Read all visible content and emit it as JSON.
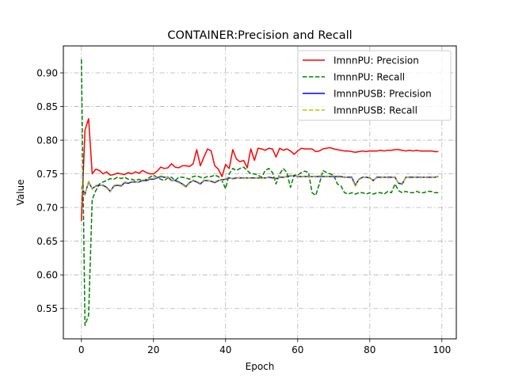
{
  "chart_data": {
    "type": "line",
    "title": "CONTAINER:Precision and Recall",
    "xlabel": "Epoch",
    "ylabel": "Value",
    "xlim": [
      -5,
      104
    ],
    "ylim": [
      0.505,
      0.94
    ],
    "xticks": [
      0,
      20,
      40,
      60,
      80,
      100
    ],
    "yticks": [
      0.55,
      0.6,
      0.65,
      0.7,
      0.75,
      0.8,
      0.85,
      0.9
    ],
    "ytick_labels": [
      "0.55",
      "0.60",
      "0.65",
      "0.70",
      "0.75",
      "0.80",
      "0.85",
      "0.90"
    ],
    "grid": true,
    "legend_position": "top-right",
    "series": [
      {
        "name": "ImnnPU: Precision",
        "color": "#ff0000",
        "dash": "solid",
        "x": [
          0,
          1,
          2,
          3,
          4,
          5,
          6,
          7,
          8,
          9,
          10,
          11,
          12,
          13,
          14,
          15,
          16,
          17,
          18,
          19,
          20,
          21,
          22,
          23,
          24,
          25,
          26,
          27,
          28,
          29,
          30,
          31,
          32,
          33,
          34,
          35,
          36,
          37,
          38,
          39,
          40,
          41,
          42,
          43,
          44,
          45,
          46,
          47,
          48,
          49,
          50,
          51,
          52,
          53,
          54,
          55,
          56,
          57,
          58,
          59,
          60,
          61,
          62,
          63,
          64,
          65,
          66,
          67,
          68,
          69,
          70,
          71,
          72,
          73,
          74,
          75,
          76,
          77,
          78,
          79,
          80,
          81,
          82,
          83,
          84,
          85,
          86,
          87,
          88,
          89,
          90,
          91,
          92,
          93,
          94,
          95,
          96,
          97,
          98,
          99
        ],
        "values": [
          0.68,
          0.815,
          0.832,
          0.75,
          0.757,
          0.755,
          0.75,
          0.753,
          0.748,
          0.749,
          0.751,
          0.75,
          0.749,
          0.752,
          0.75,
          0.753,
          0.751,
          0.755,
          0.752,
          0.75,
          0.75,
          0.754,
          0.76,
          0.758,
          0.759,
          0.765,
          0.76,
          0.759,
          0.762,
          0.762,
          0.761,
          0.765,
          0.786,
          0.762,
          0.775,
          0.787,
          0.784,
          0.762,
          0.757,
          0.746,
          0.764,
          0.758,
          0.786,
          0.772,
          0.768,
          0.77,
          0.759,
          0.787,
          0.77,
          0.788,
          0.787,
          0.785,
          0.788,
          0.787,
          0.775,
          0.788,
          0.785,
          0.787,
          0.784,
          0.779,
          0.784,
          0.788,
          0.787,
          0.787,
          0.787,
          0.783,
          0.784,
          0.787,
          0.788,
          0.789,
          0.787,
          0.786,
          0.785,
          0.784,
          0.784,
          0.783,
          0.782,
          0.783,
          0.784,
          0.783,
          0.784,
          0.784,
          0.784,
          0.785,
          0.784,
          0.785,
          0.785,
          0.786,
          0.786,
          0.785,
          0.784,
          0.785,
          0.784,
          0.785,
          0.784,
          0.784,
          0.784,
          0.784,
          0.783,
          0.783
        ]
      },
      {
        "name": "ImnnPU: Recall",
        "color": "#008000",
        "dash": "dashed",
        "x": [
          0,
          1,
          2,
          3,
          4,
          5,
          6,
          7,
          8,
          9,
          10,
          11,
          12,
          13,
          14,
          15,
          16,
          17,
          18,
          19,
          20,
          21,
          22,
          23,
          24,
          25,
          26,
          27,
          28,
          29,
          30,
          31,
          32,
          33,
          34,
          35,
          36,
          37,
          38,
          39,
          40,
          41,
          42,
          43,
          44,
          45,
          46,
          47,
          48,
          49,
          50,
          51,
          52,
          53,
          54,
          55,
          56,
          57,
          58,
          59,
          60,
          61,
          62,
          63,
          64,
          65,
          66,
          67,
          68,
          69,
          70,
          71,
          72,
          73,
          74,
          75,
          76,
          77,
          78,
          79,
          80,
          81,
          82,
          83,
          84,
          85,
          86,
          87,
          88,
          89,
          90,
          91,
          92,
          93,
          94,
          95,
          96,
          97,
          98,
          99
        ],
        "values": [
          0.92,
          0.525,
          0.54,
          0.712,
          0.725,
          0.735,
          0.738,
          0.74,
          0.743,
          0.742,
          0.745,
          0.743,
          0.745,
          0.742,
          0.742,
          0.74,
          0.742,
          0.74,
          0.742,
          0.745,
          0.748,
          0.745,
          0.742,
          0.74,
          0.744,
          0.745,
          0.74,
          0.745,
          0.745,
          0.744,
          0.742,
          0.746,
          0.747,
          0.745,
          0.744,
          0.746,
          0.746,
          0.748,
          0.746,
          0.74,
          0.728,
          0.75,
          0.758,
          0.755,
          0.758,
          0.76,
          0.755,
          0.75,
          0.75,
          0.748,
          0.745,
          0.755,
          0.758,
          0.752,
          0.735,
          0.75,
          0.758,
          0.752,
          0.73,
          0.748,
          0.748,
          0.752,
          0.754,
          0.752,
          0.722,
          0.718,
          0.735,
          0.755,
          0.752,
          0.75,
          0.748,
          0.735,
          0.732,
          0.722,
          0.72,
          0.722,
          0.72,
          0.722,
          0.722,
          0.72,
          0.722,
          0.72,
          0.722,
          0.722,
          0.72,
          0.724,
          0.722,
          0.735,
          0.725,
          0.722,
          0.724,
          0.722,
          0.722,
          0.724,
          0.722,
          0.722,
          0.724,
          0.724,
          0.722,
          0.722
        ]
      },
      {
        "name": "ImnnPUSB: Precision",
        "color": "#0000ff",
        "dash": "solid",
        "x": [
          0,
          1,
          2,
          3,
          4,
          5,
          6,
          7,
          8,
          9,
          10,
          11,
          12,
          13,
          14,
          15,
          16,
          17,
          18,
          19,
          20,
          21,
          22,
          23,
          24,
          25,
          26,
          27,
          28,
          29,
          30,
          31,
          32,
          33,
          34,
          35,
          36,
          37,
          38,
          39,
          40,
          41,
          42,
          43,
          44,
          45,
          46,
          47,
          48,
          49,
          50,
          51,
          52,
          53,
          54,
          55,
          56,
          57,
          58,
          59,
          60,
          61,
          62,
          63,
          64,
          65,
          66,
          67,
          68,
          69,
          70,
          71,
          72,
          73,
          74,
          75,
          76,
          77,
          78,
          79,
          80,
          81,
          82,
          83,
          84,
          85,
          86,
          87,
          88,
          89,
          90,
          91,
          92,
          93,
          94,
          95,
          96,
          97,
          98,
          99
        ],
        "values": [
          0.73,
          0.72,
          0.738,
          0.728,
          0.732,
          0.733,
          0.733,
          0.73,
          0.724,
          0.732,
          0.733,
          0.732,
          0.737,
          0.736,
          0.738,
          0.738,
          0.738,
          0.74,
          0.74,
          0.742,
          0.742,
          0.744,
          0.746,
          0.745,
          0.745,
          0.74,
          0.74,
          0.738,
          0.735,
          0.731,
          0.737,
          0.74,
          0.738,
          0.735,
          0.74,
          0.74,
          0.739,
          0.737,
          0.74,
          0.741,
          0.742,
          0.744,
          0.743,
          0.744,
          0.744,
          0.744,
          0.744,
          0.744,
          0.744,
          0.744,
          0.744,
          0.744,
          0.745,
          0.744,
          0.743,
          0.745,
          0.745,
          0.746,
          0.747,
          0.747,
          0.746,
          0.746,
          0.746,
          0.746,
          0.746,
          0.746,
          0.746,
          0.746,
          0.746,
          0.746,
          0.746,
          0.746,
          0.746,
          0.745,
          0.745,
          0.745,
          0.733,
          0.742,
          0.745,
          0.745,
          0.744,
          0.74,
          0.745,
          0.745,
          0.745,
          0.745,
          0.745,
          0.745,
          0.736,
          0.735,
          0.745,
          0.745,
          0.745,
          0.745,
          0.745,
          0.745,
          0.745,
          0.745,
          0.745,
          0.746
        ]
      },
      {
        "name": "ImnnPUSB: Recall",
        "color": "#bfbf00",
        "dash": "dashed",
        "x": [
          0,
          1,
          2,
          3,
          4,
          5,
          6,
          7,
          8,
          9,
          10,
          11,
          12,
          13,
          14,
          15,
          16,
          17,
          18,
          19,
          20,
          21,
          22,
          23,
          24,
          25,
          26,
          27,
          28,
          29,
          30,
          31,
          32,
          33,
          34,
          35,
          36,
          37,
          38,
          39,
          40,
          41,
          42,
          43,
          44,
          45,
          46,
          47,
          48,
          49,
          50,
          51,
          52,
          53,
          54,
          55,
          56,
          57,
          58,
          59,
          60,
          61,
          62,
          63,
          64,
          65,
          66,
          67,
          68,
          69,
          70,
          71,
          72,
          73,
          74,
          75,
          76,
          77,
          78,
          79,
          80,
          81,
          82,
          83,
          84,
          85,
          86,
          87,
          88,
          89,
          90,
          91,
          92,
          93,
          94,
          95,
          96,
          97,
          98,
          99
        ],
        "values": [
          0.731,
          0.718,
          0.74,
          0.727,
          0.733,
          0.734,
          0.732,
          0.729,
          0.723,
          0.733,
          0.734,
          0.733,
          0.738,
          0.737,
          0.739,
          0.737,
          0.739,
          0.741,
          0.741,
          0.743,
          0.743,
          0.745,
          0.747,
          0.746,
          0.744,
          0.741,
          0.739,
          0.737,
          0.734,
          0.73,
          0.736,
          0.741,
          0.739,
          0.736,
          0.741,
          0.739,
          0.74,
          0.738,
          0.741,
          0.74,
          0.743,
          0.745,
          0.742,
          0.743,
          0.745,
          0.743,
          0.745,
          0.743,
          0.743,
          0.745,
          0.743,
          0.745,
          0.744,
          0.743,
          0.742,
          0.746,
          0.746,
          0.745,
          0.748,
          0.746,
          0.747,
          0.745,
          0.747,
          0.745,
          0.747,
          0.745,
          0.747,
          0.747,
          0.745,
          0.747,
          0.747,
          0.745,
          0.745,
          0.746,
          0.744,
          0.744,
          0.731,
          0.743,
          0.744,
          0.746,
          0.743,
          0.741,
          0.744,
          0.744,
          0.746,
          0.744,
          0.744,
          0.746,
          0.735,
          0.734,
          0.746,
          0.744,
          0.744,
          0.746,
          0.744,
          0.746,
          0.744,
          0.746,
          0.744,
          0.747
        ]
      }
    ]
  }
}
